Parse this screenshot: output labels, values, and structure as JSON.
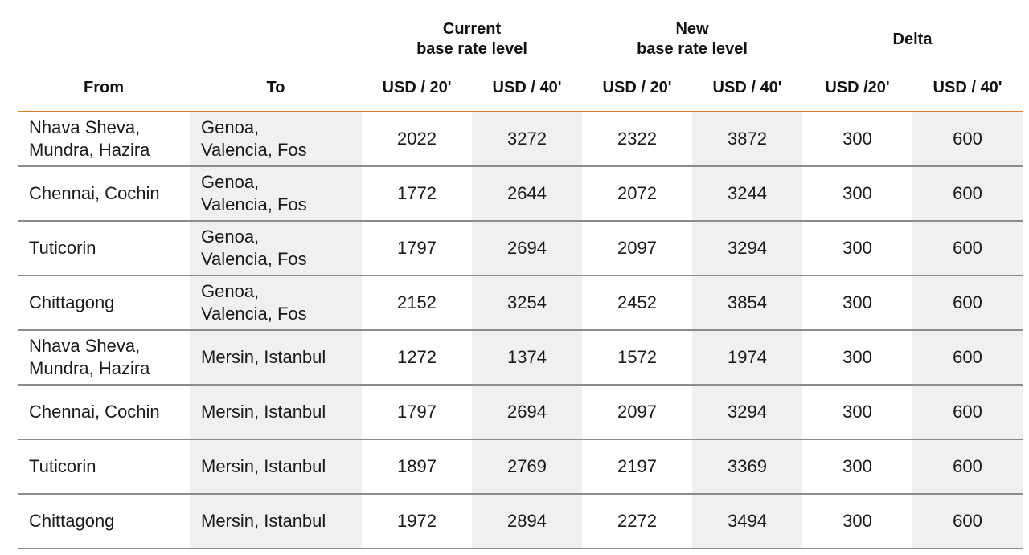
{
  "groups": {
    "current": "Current\nbase rate level",
    "new": "New\nbase rate level",
    "delta": "Delta"
  },
  "columns": {
    "from": "From",
    "to": "To",
    "cur20": "USD / 20'",
    "cur40": "USD / 40'",
    "new20": "USD / 20'",
    "new40": "USD / 40'",
    "d20": "USD /20'",
    "d40": "USD / 40'"
  },
  "rows": [
    {
      "from": "Nhava Sheva,\nMundra, Hazira",
      "to": "Genoa,\nValencia, Fos",
      "cur20": "2022",
      "cur40": "3272",
      "new20": "2322",
      "new40": "3872",
      "d20": "300",
      "d40": "600"
    },
    {
      "from": "Chennai, Cochin",
      "to": "Genoa,\nValencia, Fos",
      "cur20": "1772",
      "cur40": "2644",
      "new20": "2072",
      "new40": "3244",
      "d20": "300",
      "d40": "600"
    },
    {
      "from": "Tuticorin",
      "to": "Genoa,\nValencia, Fos",
      "cur20": "1797",
      "cur40": "2694",
      "new20": "2097",
      "new40": "3294",
      "d20": "300",
      "d40": "600"
    },
    {
      "from": "Chittagong",
      "to": "Genoa,\nValencia, Fos",
      "cur20": "2152",
      "cur40": "3254",
      "new20": "2452",
      "new40": "3854",
      "d20": "300",
      "d40": "600"
    },
    {
      "from": "Nhava Sheva,\nMundra, Hazira",
      "to": "Mersin, Istanbul",
      "cur20": "1272",
      "cur40": "1374",
      "new20": "1572",
      "new40": "1974",
      "d20": "300",
      "d40": "600"
    },
    {
      "from": "Chennai, Cochin",
      "to": "Mersin, Istanbul",
      "cur20": "1797",
      "cur40": "2694",
      "new20": "2097",
      "new40": "3294",
      "d20": "300",
      "d40": "600"
    },
    {
      "from": "Tuticorin",
      "to": "Mersin, Istanbul",
      "cur20": "1897",
      "cur40": "2769",
      "new20": "2197",
      "new40": "3369",
      "d20": "300",
      "d40": "600"
    },
    {
      "from": "Chittagong",
      "to": "Mersin, Istanbul",
      "cur20": "1972",
      "cur40": "2894",
      "new20": "2272",
      "new40": "3494",
      "d20": "300",
      "d40": "600"
    }
  ]
}
